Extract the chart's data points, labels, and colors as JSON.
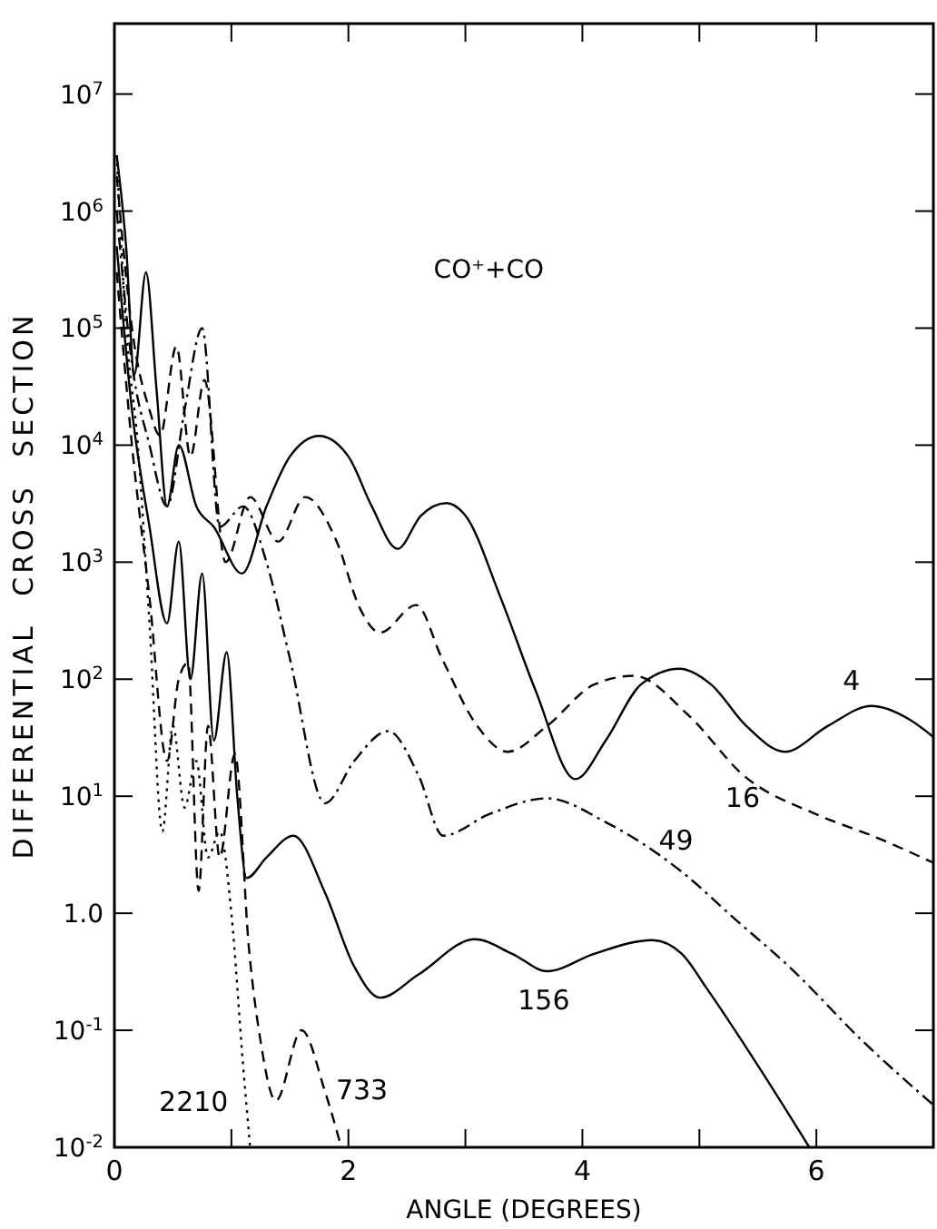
{
  "chart_data": {
    "type": "line",
    "title": "CO⁺+CO",
    "xlabel": "ANGLE (DEGREES)",
    "ylabel": "DIFFERENTIAL CROSS SECTION",
    "log": "y",
    "grid": false,
    "xlim": [
      0,
      7
    ],
    "ylim": [
      0.01,
      40000000
    ],
    "xticks": [
      0,
      {
        "value": 1,
        "label": null
      },
      2,
      {
        "value": 3,
        "label": null
      },
      4,
      {
        "value": 5,
        "label": null
      },
      6,
      {
        "value": 7,
        "label": null
      }
    ],
    "yticks": [
      {
        "value": 0.01,
        "label": "10$^{-2}$"
      },
      {
        "value": 0.1,
        "label": "10$^{-1}$"
      },
      {
        "value": 1,
        "label": "1.0"
      },
      {
        "value": 10,
        "label": "10$^{1}$"
      },
      {
        "value": 100,
        "label": "10$^{2}$"
      },
      {
        "value": 1000,
        "label": "10$^{3}$"
      },
      {
        "value": 10000,
        "label": "10$^{4}$"
      },
      {
        "value": 100000,
        "label": "10$^{5}$"
      },
      {
        "value": 1000000,
        "label": "10$^{6}$"
      },
      {
        "value": 10000000,
        "label": "10$^{7}$"
      }
    ],
    "series": [
      {
        "name": "4",
        "color": "#000000",
        "line_style": "solid",
        "x": [
          0.02,
          0.1,
          0.17,
          0.27,
          0.36,
          0.45,
          0.55,
          0.7,
          0.85,
          1.09,
          1.3,
          1.5,
          1.75,
          2.0,
          2.2,
          2.42,
          2.62,
          2.84,
          3.0,
          3.3,
          3.6,
          3.94,
          4.2,
          4.5,
          4.83,
          5.1,
          5.4,
          5.73,
          6.1,
          6.47,
          6.8,
          7.0
        ],
        "values": [
          3000000,
          500000,
          40000,
          300000,
          30000,
          3000,
          10000,
          3000,
          2000,
          800,
          3000,
          8000,
          12000,
          8000,
          3000,
          1300,
          2500,
          3200,
          2500,
          500,
          80,
          14,
          30,
          90,
          123,
          90,
          40,
          24,
          40,
          59,
          45,
          32
        ]
      },
      {
        "name": "16",
        "color": "#000000",
        "line_style": "dashed",
        "x": [
          0.02,
          0.15,
          0.3,
          0.39,
          0.53,
          0.65,
          0.77,
          0.95,
          1.16,
          1.4,
          1.63,
          1.9,
          2.1,
          2.27,
          2.58,
          2.8,
          3.1,
          3.36,
          3.7,
          4.1,
          4.44,
          4.9,
          5.38,
          6.0,
          6.5,
          7.0
        ],
        "values": [
          2000000,
          100000,
          20000,
          12000,
          70000,
          8000,
          36000,
          1000,
          3600,
          1500,
          3600,
          1500,
          400,
          250,
          430,
          150,
          40,
          24,
          40,
          90,
          107,
          50,
          15,
          7,
          4.5,
          2.7
        ]
      },
      {
        "name": "49",
        "color": "#000000",
        "line_style": "dashdot",
        "x": [
          0.02,
          0.15,
          0.3,
          0.45,
          0.6,
          0.75,
          0.9,
          1.1,
          1.3,
          1.5,
          1.8,
          2.05,
          2.34,
          2.6,
          2.81,
          3.2,
          3.7,
          4.2,
          4.84,
          5.3,
          5.78,
          6.4,
          7.0
        ],
        "values": [
          1000000,
          50000,
          10000,
          3000,
          20000,
          100000,
          2000,
          3000,
          1000,
          150,
          8.7,
          20,
          36,
          15,
          4.6,
          7,
          9.6,
          6,
          2.3,
          0.9,
          0.34,
          0.08,
          0.023
        ]
      },
      {
        "name": "156",
        "color": "#000000",
        "line_style": "solid",
        "x": [
          0.02,
          0.15,
          0.3,
          0.45,
          0.55,
          0.65,
          0.75,
          0.85,
          0.96,
          1.05,
          1.13,
          1.3,
          1.53,
          1.8,
          2.05,
          2.27,
          2.6,
          3.08,
          3.4,
          3.7,
          4.1,
          4.6,
          4.85,
          5.06,
          5.5,
          5.94
        ],
        "values": [
          500000,
          20000,
          2000,
          300,
          1500,
          100,
          800,
          30,
          170,
          10,
          2,
          3,
          4.6,
          1.5,
          0.35,
          0.19,
          0.3,
          0.6,
          0.45,
          0.32,
          0.45,
          0.59,
          0.45,
          0.23,
          0.05,
          0.01
        ]
      },
      {
        "name": "733",
        "color": "#000000",
        "line_style": "dashed",
        "x": [
          0.02,
          0.15,
          0.3,
          0.45,
          0.55,
          0.63,
          0.72,
          0.8,
          0.9,
          1.03,
          1.15,
          1.25,
          1.38,
          1.6,
          1.8,
          1.94
        ],
        "values": [
          300000,
          10000,
          500,
          20,
          100,
          138,
          1.55,
          40,
          3,
          23,
          0.5,
          0.08,
          0.025,
          0.1,
          0.03,
          0.01
        ]
      },
      {
        "name": "2210",
        "color": "#000000",
        "line_style": "dotted",
        "x": [
          0.02,
          0.1,
          0.2,
          0.3,
          0.41,
          0.5,
          0.6,
          0.7,
          0.8,
          0.9,
          1.0,
          1.1,
          1.16
        ],
        "values": [
          3000000,
          100000,
          10000,
          300,
          5,
          40,
          8,
          20,
          3,
          5,
          1,
          0.05,
          0.01
        ]
      }
    ]
  }
}
